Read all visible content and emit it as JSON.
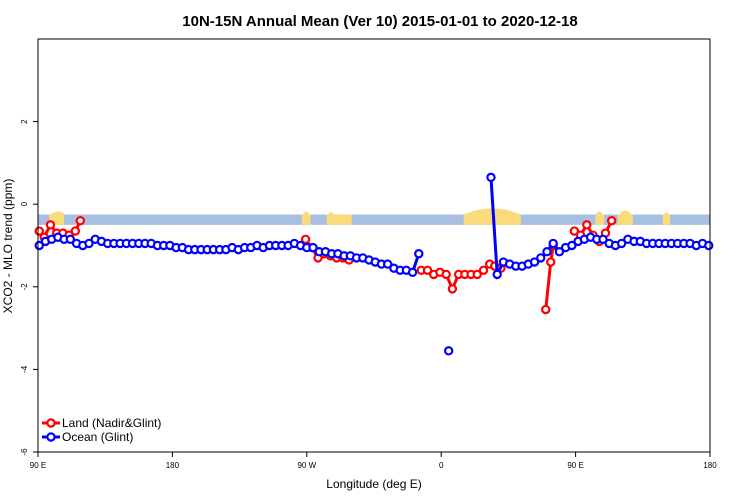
{
  "chart_data": {
    "type": "line",
    "title": "10N-15N Annual Mean (Ver 10)   2015-01-01 to 2020-12-18",
    "xlabel": "Longitude (deg E)",
    "ylabel": "XCO2 - MLO trend (ppm)",
    "xlim": [
      -90,
      180
    ],
    "ylim": [
      -6,
      4
    ],
    "x_ticks": [
      {
        "value": -90,
        "label": "90 E"
      },
      {
        "value": -36,
        "label": "180"
      },
      {
        "value": 18,
        "label": "90 W"
      },
      {
        "value": 72,
        "label": "0"
      },
      {
        "value": 126,
        "label": "90 E"
      },
      {
        "value": 180,
        "label": "180"
      }
    ],
    "y_ticks": [
      {
        "value": -6,
        "label": "-6"
      },
      {
        "value": -4,
        "label": "-4"
      },
      {
        "value": -2,
        "label": "-2"
      },
      {
        "value": 0,
        "label": "0"
      },
      {
        "value": 2,
        "label": "2"
      }
    ],
    "legend_position": "bottom-left",
    "background_band": {
      "y_range": [
        -0.5,
        -0.25
      ],
      "ocean_color": "#a7bfe0",
      "land_color": "#f9db7c"
    },
    "series": [
      {
        "name": "Land (Nadir&Glint)",
        "color": "#ff0000",
        "segments": [
          [
            [
              -89.5,
              -0.65
            ],
            [
              -87.5,
              -0.8
            ],
            [
              -85,
              -0.5
            ],
            [
              -82.5,
              -0.7
            ],
            [
              -80,
              -0.7
            ],
            [
              -77.5,
              -0.75
            ],
            [
              -75,
              -0.65
            ],
            [
              -73,
              -0.4
            ]
          ],
          [
            [
              17.5,
              -0.85
            ],
            [
              20,
              -1.05
            ],
            [
              22.5,
              -1.3
            ],
            [
              25,
              -1.2
            ],
            [
              27.5,
              -1.25
            ],
            [
              30,
              -1.3
            ],
            [
              32.5,
              -1.3
            ],
            [
              35,
              -1.35
            ]
          ],
          [
            [
              64,
              -1.6
            ],
            [
              66.5,
              -1.6
            ],
            [
              69,
              -1.7
            ],
            [
              71.5,
              -1.65
            ],
            [
              74,
              -1.7
            ],
            [
              76.5,
              -2.05
            ],
            [
              79,
              -1.7
            ],
            [
              81.5,
              -1.7
            ],
            [
              84,
              -1.7
            ],
            [
              86.5,
              -1.7
            ],
            [
              89,
              -1.6
            ],
            [
              91.5,
              -1.45
            ],
            [
              93.5,
              -1.5
            ],
            [
              96,
              -1.55
            ]
          ],
          [
            [
              114,
              -2.55
            ],
            [
              116,
              -1.4
            ],
            [
              117,
              -1.0
            ]
          ],
          [
            [
              125.5,
              -0.65
            ],
            [
              128,
              -0.75
            ],
            [
              130.5,
              -0.5
            ],
            [
              133,
              -0.75
            ],
            [
              135.5,
              -0.9
            ],
            [
              138,
              -0.7
            ],
            [
              140.5,
              -0.4
            ]
          ]
        ]
      },
      {
        "name": "Ocean (Glint)",
        "color": "#0000ff",
        "segments": [
          [
            [
              -89.5,
              -1.0
            ],
            [
              -87,
              -0.9
            ],
            [
              -84.5,
              -0.85
            ],
            [
              -82,
              -0.8
            ],
            [
              -79.5,
              -0.85
            ],
            [
              -77,
              -0.85
            ],
            [
              -74.5,
              -0.95
            ],
            [
              -72,
              -1.0
            ],
            [
              -69.5,
              -0.95
            ],
            [
              -67,
              -0.85
            ],
            [
              -64.5,
              -0.9
            ],
            [
              -62,
              -0.95
            ],
            [
              -59.5,
              -0.95
            ],
            [
              -57,
              -0.95
            ],
            [
              -54.5,
              -0.95
            ],
            [
              -52,
              -0.95
            ],
            [
              -49.5,
              -0.95
            ],
            [
              -47,
              -0.95
            ],
            [
              -44.5,
              -0.95
            ],
            [
              -42,
              -1.0
            ],
            [
              -39.5,
              -1.0
            ],
            [
              -37,
              -1.0
            ],
            [
              -34.5,
              -1.05
            ],
            [
              -32,
              -1.05
            ],
            [
              -29.5,
              -1.1
            ],
            [
              -27,
              -1.1
            ],
            [
              -24.5,
              -1.1
            ],
            [
              -22,
              -1.1
            ],
            [
              -19.5,
              -1.1
            ],
            [
              -17,
              -1.1
            ],
            [
              -14.5,
              -1.1
            ],
            [
              -12,
              -1.05
            ],
            [
              -9.5,
              -1.1
            ],
            [
              -7,
              -1.05
            ],
            [
              -4.5,
              -1.05
            ],
            [
              -2,
              -1.0
            ],
            [
              0.5,
              -1.05
            ],
            [
              3,
              -1.0
            ],
            [
              5.5,
              -1.0
            ],
            [
              8,
              -1.0
            ],
            [
              10.5,
              -1.0
            ],
            [
              13,
              -0.95
            ],
            [
              15.5,
              -1.0
            ],
            [
              18,
              -1.05
            ],
            [
              20.5,
              -1.05
            ],
            [
              23,
              -1.15
            ],
            [
              25.5,
              -1.15
            ],
            [
              28,
              -1.2
            ],
            [
              30.5,
              -1.2
            ],
            [
              33,
              -1.25
            ],
            [
              35.5,
              -1.25
            ],
            [
              38,
              -1.3
            ],
            [
              40.5,
              -1.3
            ],
            [
              43,
              -1.35
            ],
            [
              45.5,
              -1.4
            ],
            [
              48,
              -1.45
            ],
            [
              50.5,
              -1.45
            ],
            [
              53,
              -1.55
            ],
            [
              55.5,
              -1.6
            ],
            [
              58,
              -1.6
            ],
            [
              60.5,
              -1.65
            ],
            [
              63,
              -1.2
            ]
          ],
          [
            [
              92,
              0.65
            ],
            [
              94.5,
              -1.7
            ],
            [
              97,
              -1.4
            ],
            [
              99.5,
              -1.45
            ],
            [
              102,
              -1.5
            ],
            [
              104.5,
              -1.5
            ],
            [
              107,
              -1.45
            ],
            [
              109.5,
              -1.4
            ],
            [
              112,
              -1.3
            ],
            [
              114.5,
              -1.15
            ],
            [
              117,
              -0.95
            ],
            [
              119.5,
              -1.15
            ],
            [
              122,
              -1.05
            ],
            [
              124.5,
              -1.0
            ],
            [
              127,
              -0.9
            ],
            [
              129.5,
              -0.85
            ],
            [
              132,
              -0.8
            ],
            [
              134.5,
              -0.85
            ],
            [
              137,
              -0.85
            ],
            [
              139.5,
              -0.95
            ],
            [
              142,
              -1.0
            ],
            [
              144.5,
              -0.95
            ],
            [
              147,
              -0.85
            ],
            [
              149.5,
              -0.9
            ],
            [
              152,
              -0.9
            ],
            [
              154.5,
              -0.95
            ],
            [
              157,
              -0.95
            ],
            [
              159.5,
              -0.95
            ],
            [
              162,
              -0.95
            ],
            [
              164.5,
              -0.95
            ],
            [
              167,
              -0.95
            ],
            [
              169.5,
              -0.95
            ],
            [
              172,
              -0.95
            ],
            [
              174.5,
              -1.0
            ],
            [
              177,
              -0.95
            ],
            [
              179.5,
              -1.0
            ]
          ],
          [
            [
              75,
              -3.55
            ]
          ]
        ]
      }
    ]
  }
}
